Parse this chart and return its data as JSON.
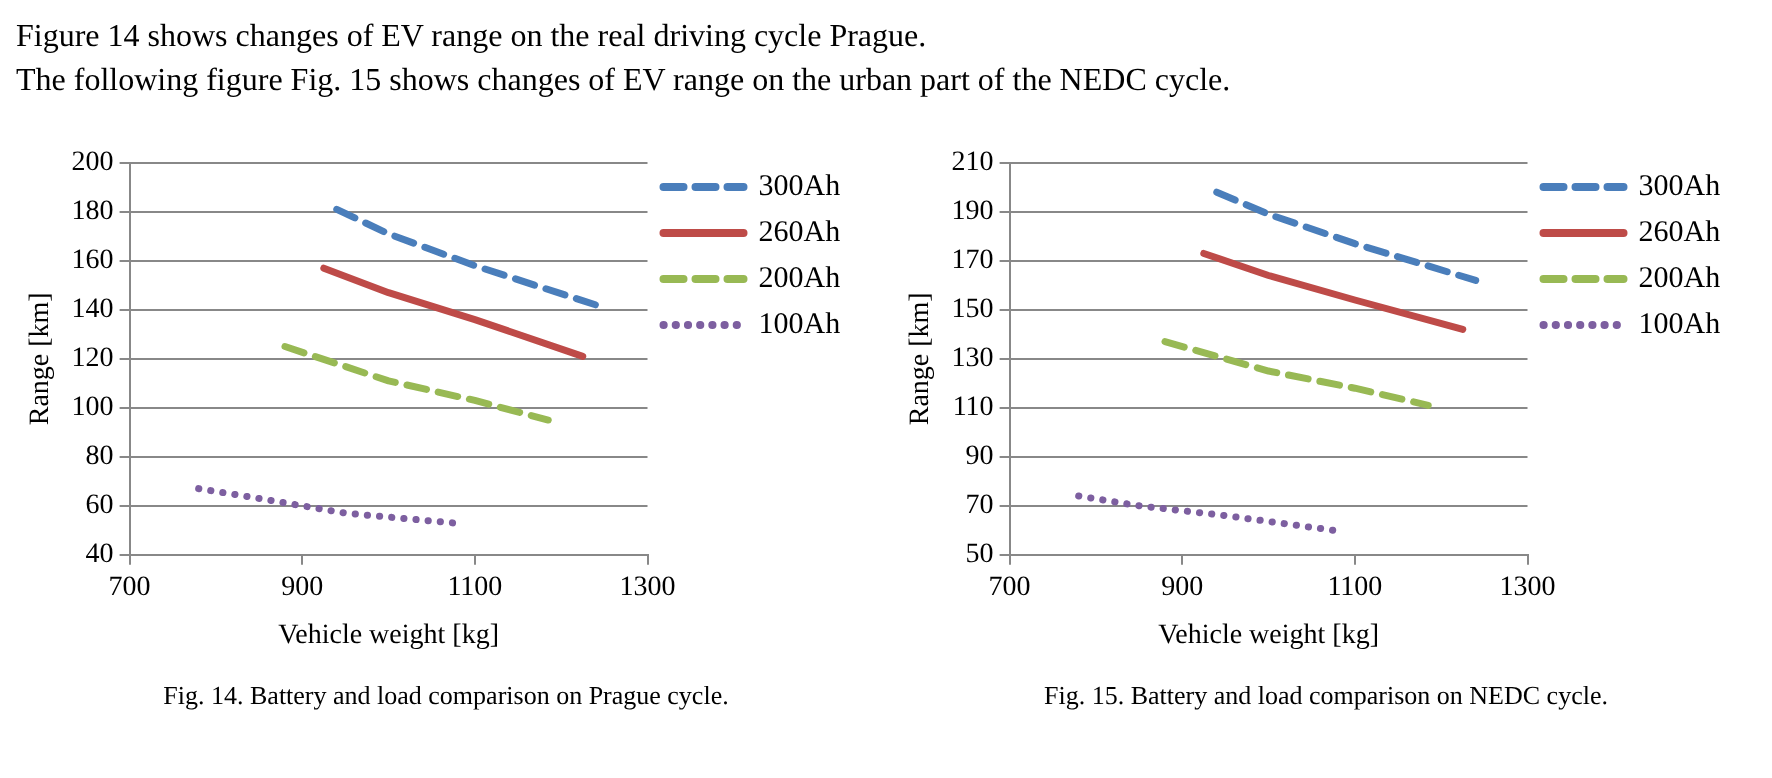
{
  "chart_data": [
    {
      "type": "line",
      "xlabel": "Vehicle weight [kg]",
      "ylabel": "Range [km]",
      "annotations": [
        "Figure 14 shows changes of EV range on the real driving cycle Prague.",
        "The following figure Fig. 15 shows changes of EV range on the urban part of the NEDC cycle.",
        "Fig. 14. Battery and load comparison on Prague cycle."
      ],
      "series": [
        {
          "name": "300Ah",
          "color": "#4a7ebb",
          "line_style": "dashed",
          "x": [
            940,
            1000,
            1100,
            1240
          ],
          "values": [
            181,
            171,
            158,
            142
          ]
        },
        {
          "name": "260Ah",
          "color": "#be4b48",
          "line_style": "solid",
          "x": [
            925,
            1000,
            1100,
            1225
          ],
          "values": [
            157,
            147,
            136,
            121
          ]
        },
        {
          "name": "200Ah",
          "color": "#98b954",
          "line_style": "dashed",
          "x": [
            880,
            1000,
            1100,
            1185
          ],
          "values": [
            125,
            111,
            103,
            95
          ]
        },
        {
          "name": "100Ah",
          "color": "#7d5fa0",
          "line_style": "dotted",
          "x": [
            780,
            850,
            950,
            1075
          ],
          "values": [
            67,
            63,
            57,
            53
          ]
        }
      ],
      "xlim": [
        700,
        1300
      ],
      "xticks": [
        700,
        900,
        1100,
        1300
      ],
      "ylim": [
        40,
        200
      ],
      "yticks": [
        40,
        60,
        80,
        100,
        120,
        140,
        160,
        180,
        200
      ],
      "grid": "y",
      "legend": "right",
      "marker": "none"
    },
    {
      "type": "line",
      "xlabel": "Vehicle weight [kg]",
      "ylabel": "Range [km]",
      "annotations": [
        "Fig. 15. Battery and load comparison on NEDC cycle."
      ],
      "series": [
        {
          "name": "300Ah",
          "color": "#4a7ebb",
          "line_style": "dashed",
          "x": [
            940,
            1000,
            1100,
            1240
          ],
          "values": [
            198,
            189,
            177,
            162
          ]
        },
        {
          "name": "260Ah",
          "color": "#be4b48",
          "line_style": "solid",
          "x": [
            925,
            1000,
            1100,
            1225
          ],
          "values": [
            173,
            164,
            154,
            142
          ]
        },
        {
          "name": "200Ah",
          "color": "#98b954",
          "line_style": "dashed",
          "x": [
            880,
            1000,
            1100,
            1185
          ],
          "values": [
            137,
            125,
            118,
            111
          ]
        },
        {
          "name": "100Ah",
          "color": "#7d5fa0",
          "line_style": "dotted",
          "x": [
            780,
            850,
            950,
            1075
          ],
          "values": [
            74,
            70,
            66,
            60
          ]
        }
      ],
      "xlim": [
        700,
        1300
      ],
      "xticks": [
        700,
        900,
        1100,
        1300
      ],
      "ylim": [
        50,
        210
      ],
      "yticks": [
        50,
        70,
        90,
        110,
        130,
        150,
        170,
        190,
        210
      ],
      "grid": "y",
      "legend": "right",
      "marker": "none"
    }
  ]
}
